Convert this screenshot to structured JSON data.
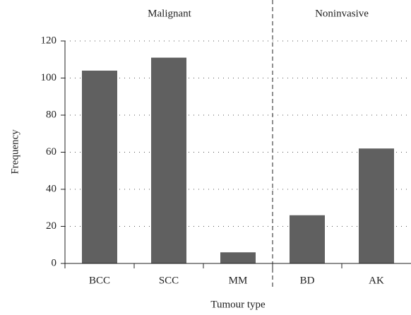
{
  "chart_data": {
    "type": "bar",
    "x_label": "Tumour type",
    "y_label": "Frequency",
    "annotations": [
      "Malignant",
      "Noninvasive"
    ],
    "categories": [
      "BCC",
      "SCC",
      "MM",
      "BD",
      "AK"
    ],
    "values": [
      104,
      111,
      6,
      26,
      62
    ],
    "color": "#606060",
    "ylim": [
      0,
      120
    ],
    "yticks": [
      0,
      20,
      40,
      60,
      80,
      100,
      120
    ],
    "grid": true
  }
}
